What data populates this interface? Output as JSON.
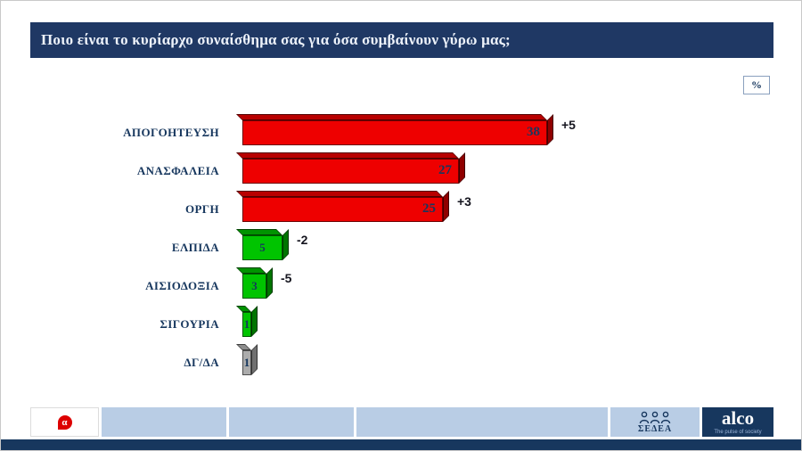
{
  "header": {
    "title": "Ποιο είναι το κυρίαρχο συναίσθημα σας για όσα συμβαίνουν γύρω μας;"
  },
  "unit_badge": "%",
  "chart_data": {
    "type": "bar",
    "orientation": "horizontal",
    "title": "Ποιο είναι το κυρίαρχο συναίσθημα σας για όσα συμβαίνουν γύρω μας;",
    "unit": "%",
    "xlim": [
      0,
      40
    ],
    "grid": false,
    "categories": [
      "ΑΠΟΓΟΗΤΕΥΣΗ",
      "ΑΝΑΣΦΑΛΕΙΑ",
      "ΟΡΓΗ",
      "ΕΛΠΙΔΑ",
      "ΑΙΣΙΟΔΟΞΙΑ",
      "ΣΙΓΟΥΡΙΑ",
      "ΔΓ/ΔΑ"
    ],
    "values": [
      38,
      27,
      25,
      5,
      3,
      1,
      1
    ],
    "changes": [
      "+5",
      "",
      "+3",
      "-2",
      "-5",
      "",
      ""
    ],
    "bar_colors": [
      "red",
      "red",
      "red",
      "green",
      "green",
      "green",
      "gray"
    ]
  },
  "palette": {
    "navy": "#17375E",
    "red": {
      "front": "#EE0000",
      "top": "#B80000",
      "side": "#8F0000"
    },
    "green": {
      "front": "#00C400",
      "top": "#009300",
      "side": "#007500"
    },
    "gray": {
      "front": "#ACACAC",
      "top": "#8C8C8C",
      "side": "#707070"
    },
    "light_blue": "#B9CDE5"
  },
  "footer": {
    "logo_glyph": "α",
    "sedea_label": "ΣΕΔΕΑ",
    "alco_name": "alco",
    "alco_tagline": "The pulse of society"
  },
  "icons": {
    "sedea": "people-icon",
    "broadcaster": "alpha-logo"
  }
}
